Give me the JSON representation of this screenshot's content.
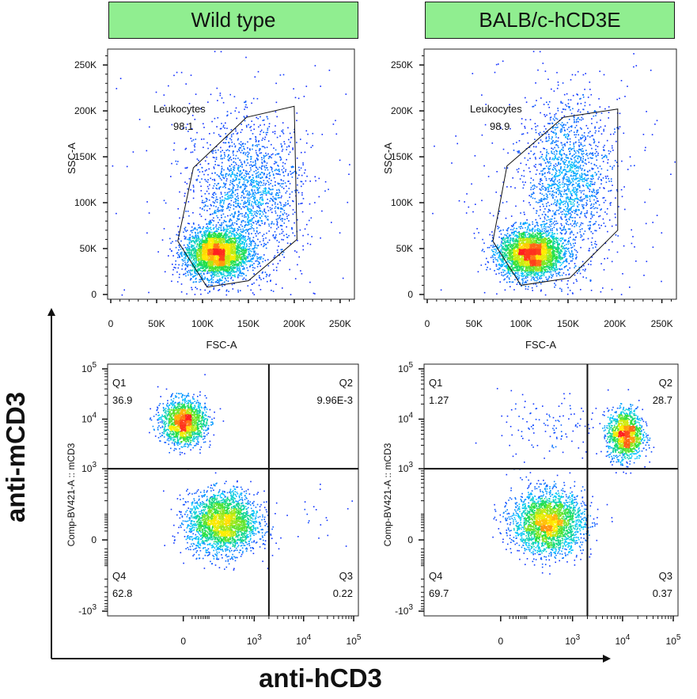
{
  "panels": [
    {
      "title": "Wild type"
    },
    {
      "title": "BALB/c-hCD3E"
    }
  ],
  "outer_axes": {
    "y_label": "anti-mCD3",
    "x_label": "anti-hCD3"
  },
  "colors": {
    "header_bg": "#90ee90",
    "density_scale": [
      "#1010ff",
      "#00c8ff",
      "#22e040",
      "#ffee00",
      "#ff2020"
    ]
  },
  "chart_data": [
    {
      "type": "scatter",
      "panel": "Wild type",
      "subtype": "flow-cytometry-density",
      "xlabel": "FSC-A",
      "ylabel": "SSC-A",
      "xlim": [
        0,
        262144
      ],
      "ylim": [
        0,
        262144
      ],
      "x_ticks": [
        "0",
        "50K",
        "100K",
        "150K",
        "200K",
        "250K"
      ],
      "y_ticks": [
        "0",
        "50K",
        "100K",
        "150K",
        "200K",
        "250K"
      ],
      "x_tick_values": [
        0,
        50000,
        100000,
        150000,
        200000,
        250000
      ],
      "y_tick_values": [
        0,
        50000,
        100000,
        150000,
        200000,
        250000
      ],
      "gate": {
        "name": "Leukocytes",
        "percent": "98.1",
        "polygon": [
          [
            73000,
            58000
          ],
          [
            90000,
            138000
          ],
          [
            148000,
            193000
          ],
          [
            200000,
            205000
          ],
          [
            203000,
            60000
          ],
          [
            150000,
            15000
          ],
          [
            105000,
            8000
          ]
        ]
      },
      "populations": [
        {
          "cx": 115000,
          "cy": 45000,
          "sx": 17000,
          "sy": 13000,
          "n": 3200
        },
        {
          "cx": 150000,
          "cy": 110000,
          "sx": 28000,
          "sy": 38000,
          "n": 1500
        },
        {
          "cx": 140000,
          "cy": 120000,
          "sx": 60000,
          "sy": 70000,
          "n": 350
        }
      ]
    },
    {
      "type": "scatter",
      "panel": "BALB/c-hCD3E",
      "subtype": "flow-cytometry-density",
      "xlabel": "FSC-A",
      "ylabel": "SSC-A",
      "xlim": [
        0,
        262144
      ],
      "ylim": [
        0,
        262144
      ],
      "x_ticks": [
        "0",
        "50K",
        "100K",
        "150K",
        "200K",
        "250K"
      ],
      "y_ticks": [
        "0",
        "50K",
        "100K",
        "150K",
        "200K",
        "250K"
      ],
      "x_tick_values": [
        0,
        50000,
        100000,
        150000,
        200000,
        250000
      ],
      "y_tick_values": [
        0,
        50000,
        100000,
        150000,
        200000,
        250000
      ],
      "gate": {
        "name": "Leukocytes",
        "percent": "98.9",
        "polygon": [
          [
            70000,
            58000
          ],
          [
            85000,
            140000
          ],
          [
            145000,
            193000
          ],
          [
            203000,
            202000
          ],
          [
            203000,
            70000
          ],
          [
            152000,
            18000
          ],
          [
            100000,
            10000
          ]
        ]
      },
      "populations": [
        {
          "cx": 110000,
          "cy": 45000,
          "sx": 17000,
          "sy": 13000,
          "n": 3200
        },
        {
          "cx": 150000,
          "cy": 125000,
          "sx": 22000,
          "sy": 42000,
          "n": 1500
        },
        {
          "cx": 140000,
          "cy": 120000,
          "sx": 60000,
          "sy": 70000,
          "n": 300
        }
      ]
    },
    {
      "type": "scatter",
      "panel": "Wild type",
      "subtype": "flow-cytometry-quadrant",
      "xlabel": "",
      "ylabel": "Comp-BV421-A :: mCD3",
      "x_ticks": [
        "0",
        "10^3",
        "10^4",
        "10^5"
      ],
      "y_ticks": [
        "-10^3",
        "0",
        "10^3",
        "10^4",
        "10^5"
      ],
      "quadrant_gate": {
        "x": 2000,
        "y": 1000
      },
      "quadrants": [
        {
          "name": "Q1",
          "value": "36.9",
          "position": "top-left"
        },
        {
          "name": "Q2",
          "value": "9.96E-3",
          "position": "top-right"
        },
        {
          "name": "Q3",
          "value": "0.22",
          "position": "bottom-right"
        },
        {
          "name": "Q4",
          "value": "62.8",
          "position": "bottom-left"
        }
      ],
      "populations": [
        {
          "cx": 0,
          "cy": 9000,
          "sx_log": 0.22,
          "sy_log": 0.22,
          "n": 1700
        },
        {
          "cx": 200,
          "cy": 50,
          "sx_log": 0.35,
          "sy_log": 0.3,
          "n": 2600
        },
        {
          "cx": 20000,
          "cy": 100,
          "sx_log": 0.5,
          "sy_log": 0.3,
          "n": 20
        }
      ]
    },
    {
      "type": "scatter",
      "panel": "BALB/c-hCD3E",
      "subtype": "flow-cytometry-quadrant",
      "xlabel": "",
      "ylabel": "Comp-BV421-A :: mCD3",
      "x_ticks": [
        "0",
        "10^3",
        "10^4",
        "10^5"
      ],
      "y_ticks": [
        "-10^3",
        "0",
        "10^3",
        "10^4",
        "10^5"
      ],
      "quadrant_gate": {
        "x": 2000,
        "y": 1000
      },
      "quadrants": [
        {
          "name": "Q1",
          "value": "1.27",
          "position": "top-left"
        },
        {
          "name": "Q2",
          "value": "28.7",
          "position": "top-right"
        },
        {
          "name": "Q3",
          "value": "0.37",
          "position": "bottom-right"
        },
        {
          "name": "Q4",
          "value": "69.7",
          "position": "bottom-left"
        }
      ],
      "populations": [
        {
          "cx": 300,
          "cy": 50,
          "sx_log": 0.35,
          "sy_log": 0.3,
          "n": 2600
        },
        {
          "cx": 11000,
          "cy": 5000,
          "sx_log": 0.17,
          "sy_log": 0.25,
          "n": 1400
        },
        {
          "cx": 300,
          "cy": 7000,
          "sx_log": 0.5,
          "sy_log": 0.35,
          "n": 120
        }
      ]
    }
  ]
}
